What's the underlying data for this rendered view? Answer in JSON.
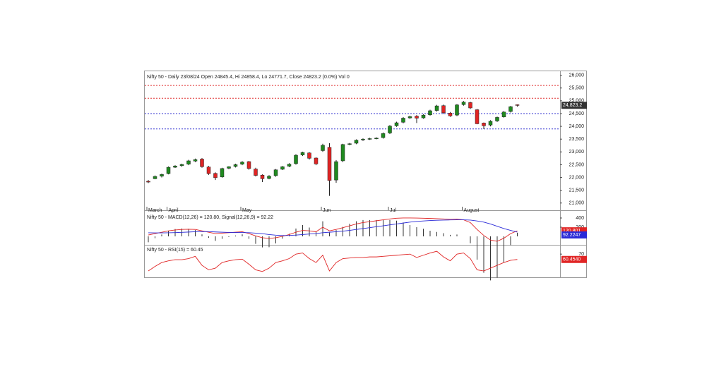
{
  "chart_data": [
    {
      "type": "candlestick",
      "title": "Nifty 50 - Daily 23/08/24 Open 24845.4, Hi 24858.4, Lo 24771.7, Close 24823.2 (0.0%) Vol 0",
      "categories": [
        "March",
        null,
        null,
        "April",
        null,
        null,
        null,
        null,
        null,
        null,
        null,
        null,
        null,
        null,
        "May",
        null,
        null,
        null,
        null,
        null,
        null,
        null,
        null,
        null,
        null,
        null,
        "Jun",
        null,
        null,
        null,
        null,
        null,
        null,
        null,
        null,
        null,
        "Jul",
        null,
        null,
        null,
        null,
        null,
        null,
        null,
        null,
        null,
        null,
        "August",
        null,
        null,
        null,
        null,
        null,
        null,
        null,
        null
      ],
      "open": [
        21850,
        21950,
        22050,
        22150,
        22400,
        22460,
        22520,
        22640,
        22720,
        22410,
        22160,
        22020,
        22360,
        22430,
        22520,
        22620,
        22330,
        22090,
        21960,
        22070,
        22320,
        22440,
        22540,
        22880,
        22960,
        22760,
        23050,
        23180,
        21900,
        22650,
        23300,
        23340,
        23470,
        23500,
        23530,
        23560,
        23740,
        24020,
        24160,
        24330,
        24400,
        24330,
        24450,
        24620,
        24810,
        24520,
        24440,
        24850,
        24930,
        24650,
        24130,
        24050,
        24210,
        24370,
        24580,
        24845.4
      ],
      "high": [
        21900,
        22080,
        22150,
        22430,
        22480,
        22540,
        22690,
        22740,
        22760,
        22450,
        22200,
        22380,
        22440,
        22540,
        22640,
        22650,
        22380,
        22120,
        22090,
        22330,
        22450,
        22560,
        22910,
        23010,
        22990,
        22790,
        23320,
        23340,
        22680,
        23320,
        23350,
        23490,
        23530,
        23550,
        23570,
        23760,
        24050,
        24180,
        24360,
        24420,
        24440,
        24470,
        24650,
        24840,
        24850,
        24560,
        24870,
        24990,
        24960,
        24680,
        24150,
        24240,
        24380,
        24600,
        24800,
        24858.4
      ],
      "low": [
        21780,
        21930,
        22000,
        22120,
        22370,
        22420,
        22480,
        22600,
        22380,
        22100,
        21900,
        21990,
        22320,
        22390,
        22480,
        22300,
        22040,
        21820,
        21930,
        22030,
        22290,
        22400,
        22500,
        22840,
        22700,
        22480,
        23000,
        21280,
        21790,
        22600,
        23260,
        23300,
        23430,
        23470,
        23490,
        23520,
        23700,
        23980,
        24120,
        24290,
        24130,
        24300,
        24420,
        24580,
        24480,
        24370,
        24400,
        24810,
        24680,
        24080,
        23890,
        24000,
        24170,
        24340,
        24540,
        24771.7
      ],
      "close": [
        21820,
        22040,
        22120,
        22400,
        22450,
        22510,
        22650,
        22700,
        22420,
        22150,
        21990,
        22350,
        22420,
        22500,
        22600,
        22350,
        22080,
        21950,
        22050,
        22300,
        22420,
        22520,
        22870,
        22980,
        22750,
        22530,
        23260,
        21880,
        22620,
        23290,
        23320,
        23460,
        23500,
        23520,
        23540,
        23720,
        24010,
        24140,
        24320,
        24380,
        24320,
        24440,
        24610,
        24800,
        24530,
        24410,
        24840,
        24950,
        24720,
        24100,
        24020,
        24200,
        24350,
        24560,
        24770,
        24823.2
      ],
      "up_color": "#1f8a1f",
      "down_color": "#e02424",
      "last_value_label": "24,823.2",
      "ylim": [
        20800,
        26100
      ],
      "yticks": [
        {
          "value": 26000,
          "label": "26,000"
        },
        {
          "value": 25500,
          "label": "25,500"
        },
        {
          "value": 25000,
          "label": "25,000"
        },
        {
          "value": 24500,
          "label": "24,500"
        },
        {
          "value": 24000,
          "label": "24,000"
        },
        {
          "value": 23500,
          "label": "23,500"
        },
        {
          "value": 23000,
          "label": "23,000"
        },
        {
          "value": 22500,
          "label": "22,500"
        },
        {
          "value": 22000,
          "label": "22,000"
        },
        {
          "value": 21500,
          "label": "21,500"
        },
        {
          "value": 21000,
          "label": "21,000"
        }
      ],
      "levels": [
        {
          "value": 25600,
          "color": "#e03030"
        },
        {
          "value": 25100,
          "color": "#e03030"
        },
        {
          "value": 24500,
          "color": "#3030d0"
        },
        {
          "value": 23900,
          "color": "#3030d0"
        }
      ]
    },
    {
      "type": "line",
      "title": "Nifty 50 - MACD(12,26) = 120.80, Signal(12,26,9) = 92.22",
      "series": [
        {
          "color": "#e02424",
          "values": [
            30,
            60,
            90,
            120,
            140,
            150,
            154,
            150,
            120,
            90,
            60,
            70,
            80,
            90,
            100,
            60,
            10,
            -30,
            -46,
            -30,
            0,
            40,
            90,
            130,
            120,
            100,
            200,
            120,
            150,
            190,
            230,
            270,
            300,
            320,
            340,
            360,
            380,
            395,
            400,
            400,
            398,
            395,
            390,
            385,
            380,
            370,
            375,
            360,
            300,
            150,
            20,
            -80,
            -108,
            -40,
            60,
            120.8
          ],
          "last_value_label": "120.801"
        },
        {
          "color": "#2a2ad8",
          "values": [
            77,
            75,
            75,
            78,
            82,
            88,
            94,
            100,
            104,
            102,
            96,
            90,
            86,
            84,
            84,
            80,
            70,
            58,
            40,
            26,
            18,
            20,
            28,
            40,
            50,
            60,
            80,
            90,
            100,
            115,
            130,
            150,
            170,
            190,
            210,
            230,
            250,
            270,
            290,
            310,
            325,
            335,
            345,
            350,
            355,
            358,
            360,
            360,
            355,
            335,
            310,
            270,
            220,
            170,
            130,
            92.22
          ],
          "last_value_label": "92.2247"
        }
      ],
      "histogram": true,
      "ylim": [
        -154,
        492
      ],
      "yticks": [
        400,
        200
      ]
    },
    {
      "type": "line",
      "title": "Nifty 50 - RSI(15) = 60.45",
      "series": [
        {
          "color": "#e02424",
          "values": [
            40,
            48,
            55,
            58,
            60,
            60,
            62,
            66,
            50,
            42,
            45,
            55,
            58,
            60,
            61,
            52,
            42,
            39,
            45,
            55,
            58,
            62,
            70,
            72,
            62,
            55,
            68,
            40,
            55,
            62,
            63,
            64,
            64,
            65,
            65,
            66,
            67,
            68,
            69,
            70,
            64,
            68,
            72,
            75,
            65,
            58,
            70,
            72,
            62,
            42,
            40,
            45,
            50,
            55,
            59,
            60.45
          ],
          "last_value_label": "60.4540"
        }
      ],
      "ylim": [
        30,
        84
      ],
      "yticks": [
        70
      ]
    }
  ]
}
